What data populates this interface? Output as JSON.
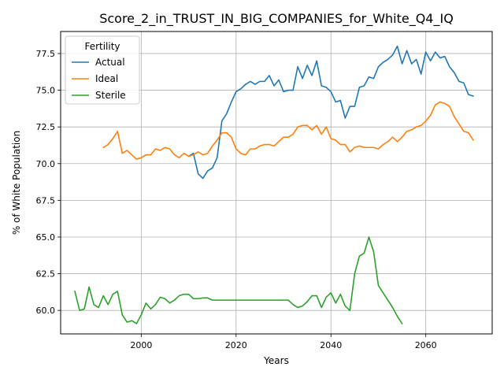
{
  "chart_data": {
    "type": "line",
    "title": "Score_2_in_TRUST_IN_BIG_COMPANIES_for_White_Q4_IQ",
    "xlabel": "Years",
    "ylabel": "% of White Population",
    "xlim": [
      1983,
      2074
    ],
    "ylim": [
      58.4,
      79.0
    ],
    "xticks": [
      2000,
      2020,
      2040,
      2060
    ],
    "yticks": [
      60.0,
      62.5,
      65.0,
      67.5,
      70.0,
      72.5,
      75.0,
      77.5
    ],
    "grid": true,
    "legend": {
      "title": "Fertility",
      "position": "top-left"
    },
    "series": [
      {
        "name": "Actual",
        "color": "#1f77b4",
        "points": [
          [
            2010,
            70.5
          ],
          [
            2011,
            70.7
          ],
          [
            2012,
            69.3
          ],
          [
            2013,
            69.0
          ],
          [
            2014,
            69.5
          ],
          [
            2015,
            69.7
          ],
          [
            2016,
            70.4
          ],
          [
            2017,
            72.9
          ],
          [
            2018,
            73.4
          ],
          [
            2019,
            74.2
          ],
          [
            2020,
            74.9
          ],
          [
            2021,
            75.1
          ],
          [
            2022,
            75.4
          ],
          [
            2023,
            75.6
          ],
          [
            2024,
            75.4
          ],
          [
            2025,
            75.6
          ],
          [
            2026,
            75.6
          ],
          [
            2027,
            76.0
          ],
          [
            2028,
            75.3
          ],
          [
            2029,
            75.7
          ],
          [
            2030,
            74.9
          ],
          [
            2031,
            75.0
          ],
          [
            2032,
            75.0
          ],
          [
            2033,
            76.6
          ],
          [
            2034,
            75.8
          ],
          [
            2035,
            76.7
          ],
          [
            2036,
            76.0
          ],
          [
            2037,
            77.0
          ],
          [
            2038,
            75.3
          ],
          [
            2039,
            75.2
          ],
          [
            2040,
            74.9
          ],
          [
            2041,
            74.2
          ],
          [
            2042,
            74.3
          ],
          [
            2043,
            73.1
          ],
          [
            2044,
            73.9
          ],
          [
            2045,
            73.9
          ],
          [
            2046,
            75.2
          ],
          [
            2047,
            75.3
          ],
          [
            2048,
            75.9
          ],
          [
            2049,
            75.8
          ],
          [
            2050,
            76.6
          ],
          [
            2051,
            76.9
          ],
          [
            2052,
            77.1
          ],
          [
            2053,
            77.4
          ],
          [
            2054,
            78.0
          ],
          [
            2055,
            76.8
          ],
          [
            2056,
            77.7
          ],
          [
            2057,
            76.8
          ],
          [
            2058,
            77.1
          ],
          [
            2059,
            76.1
          ],
          [
            2060,
            77.6
          ],
          [
            2061,
            77.0
          ],
          [
            2062,
            77.6
          ],
          [
            2063,
            77.2
          ],
          [
            2064,
            77.3
          ],
          [
            2065,
            76.6
          ],
          [
            2066,
            76.2
          ],
          [
            2067,
            75.6
          ],
          [
            2068,
            75.5
          ],
          [
            2069,
            74.7
          ],
          [
            2070,
            74.6
          ]
        ]
      },
      {
        "name": "Ideal",
        "color": "#ff7f0e",
        "points": [
          [
            1992,
            71.1
          ],
          [
            1993,
            71.3
          ],
          [
            1994,
            71.7
          ],
          [
            1995,
            72.2
          ],
          [
            1996,
            70.7
          ],
          [
            1997,
            70.9
          ],
          [
            1998,
            70.6
          ],
          [
            1999,
            70.3
          ],
          [
            2000,
            70.4
          ],
          [
            2001,
            70.6
          ],
          [
            2002,
            70.6
          ],
          [
            2003,
            71.0
          ],
          [
            2004,
            70.9
          ],
          [
            2005,
            71.1
          ],
          [
            2006,
            71.0
          ],
          [
            2007,
            70.6
          ],
          [
            2008,
            70.4
          ],
          [
            2009,
            70.7
          ],
          [
            2010,
            70.5
          ],
          [
            2011,
            70.6
          ],
          [
            2012,
            70.8
          ],
          [
            2013,
            70.6
          ],
          [
            2014,
            70.7
          ],
          [
            2015,
            71.2
          ],
          [
            2016,
            71.6
          ],
          [
            2017,
            72.1
          ],
          [
            2018,
            72.1
          ],
          [
            2019,
            71.8
          ],
          [
            2020,
            71.0
          ],
          [
            2021,
            70.7
          ],
          [
            2022,
            70.6
          ],
          [
            2023,
            71.0
          ],
          [
            2024,
            71.0
          ],
          [
            2025,
            71.2
          ],
          [
            2026,
            71.3
          ],
          [
            2027,
            71.3
          ],
          [
            2028,
            71.2
          ],
          [
            2029,
            71.5
          ],
          [
            2030,
            71.8
          ],
          [
            2031,
            71.8
          ],
          [
            2032,
            72.0
          ],
          [
            2033,
            72.5
          ],
          [
            2034,
            72.6
          ],
          [
            2035,
            72.6
          ],
          [
            2036,
            72.3
          ],
          [
            2037,
            72.6
          ],
          [
            2038,
            72.0
          ],
          [
            2039,
            72.5
          ],
          [
            2040,
            71.7
          ],
          [
            2041,
            71.6
          ],
          [
            2042,
            71.3
          ],
          [
            2043,
            71.3
          ],
          [
            2044,
            70.8
          ],
          [
            2045,
            71.1
          ],
          [
            2046,
            71.2
          ],
          [
            2047,
            71.1
          ],
          [
            2048,
            71.1
          ],
          [
            2049,
            71.1
          ],
          [
            2050,
            71.0
          ],
          [
            2051,
            71.3
          ],
          [
            2052,
            71.5
          ],
          [
            2053,
            71.8
          ],
          [
            2054,
            71.5
          ],
          [
            2055,
            71.8
          ],
          [
            2056,
            72.2
          ],
          [
            2057,
            72.3
          ],
          [
            2058,
            72.5
          ],
          [
            2059,
            72.6
          ],
          [
            2060,
            72.9
          ],
          [
            2061,
            73.3
          ],
          [
            2062,
            74.0
          ],
          [
            2063,
            74.2
          ],
          [
            2064,
            74.1
          ],
          [
            2065,
            73.9
          ],
          [
            2066,
            73.2
          ],
          [
            2067,
            72.7
          ],
          [
            2068,
            72.2
          ],
          [
            2069,
            72.1
          ],
          [
            2070,
            71.6
          ]
        ]
      },
      {
        "name": "Sterile",
        "color": "#2ca02c",
        "points": [
          [
            1986,
            61.3
          ],
          [
            1987,
            60.0
          ],
          [
            1988,
            60.1
          ],
          [
            1989,
            61.6
          ],
          [
            1990,
            60.4
          ],
          [
            1991,
            60.2
          ],
          [
            1992,
            61.0
          ],
          [
            1993,
            60.4
          ],
          [
            1994,
            61.1
          ],
          [
            1995,
            61.3
          ],
          [
            1996,
            59.7
          ],
          [
            1997,
            59.2
          ],
          [
            1998,
            59.3
          ],
          [
            1999,
            59.1
          ],
          [
            2000,
            59.7
          ],
          [
            2001,
            60.5
          ],
          [
            2002,
            60.1
          ],
          [
            2003,
            60.4
          ],
          [
            2004,
            60.9
          ],
          [
            2005,
            60.8
          ],
          [
            2006,
            60.5
          ],
          [
            2007,
            60.7
          ],
          [
            2008,
            61.0
          ],
          [
            2009,
            61.1
          ],
          [
            2010,
            61.1
          ],
          [
            2011,
            60.8
          ],
          [
            2012,
            60.8
          ],
          [
            2013,
            60.85
          ],
          [
            2014,
            60.85
          ],
          [
            2015,
            60.7
          ],
          [
            2016,
            60.7
          ],
          [
            2018,
            60.7
          ],
          [
            2020,
            60.7
          ],
          [
            2022,
            60.7
          ],
          [
            2024,
            60.7
          ],
          [
            2026,
            60.7
          ],
          [
            2028,
            60.7
          ],
          [
            2030,
            60.7
          ],
          [
            2031,
            60.7
          ],
          [
            2032,
            60.4
          ],
          [
            2033,
            60.2
          ],
          [
            2034,
            60.3
          ],
          [
            2035,
            60.6
          ],
          [
            2036,
            61.0
          ],
          [
            2037,
            61.0
          ],
          [
            2038,
            60.2
          ],
          [
            2039,
            60.9
          ],
          [
            2040,
            61.2
          ],
          [
            2041,
            60.5
          ],
          [
            2042,
            61.1
          ],
          [
            2043,
            60.3
          ],
          [
            2044,
            60.0
          ],
          [
            2045,
            62.5
          ],
          [
            2046,
            63.7
          ],
          [
            2047,
            63.9
          ],
          [
            2048,
            65.0
          ],
          [
            2049,
            64.0
          ],
          [
            2050,
            61.7
          ],
          [
            2051,
            61.2
          ],
          [
            2052,
            60.7
          ],
          [
            2053,
            60.2
          ],
          [
            2054,
            59.6
          ],
          [
            2055,
            59.1
          ]
        ]
      }
    ]
  }
}
